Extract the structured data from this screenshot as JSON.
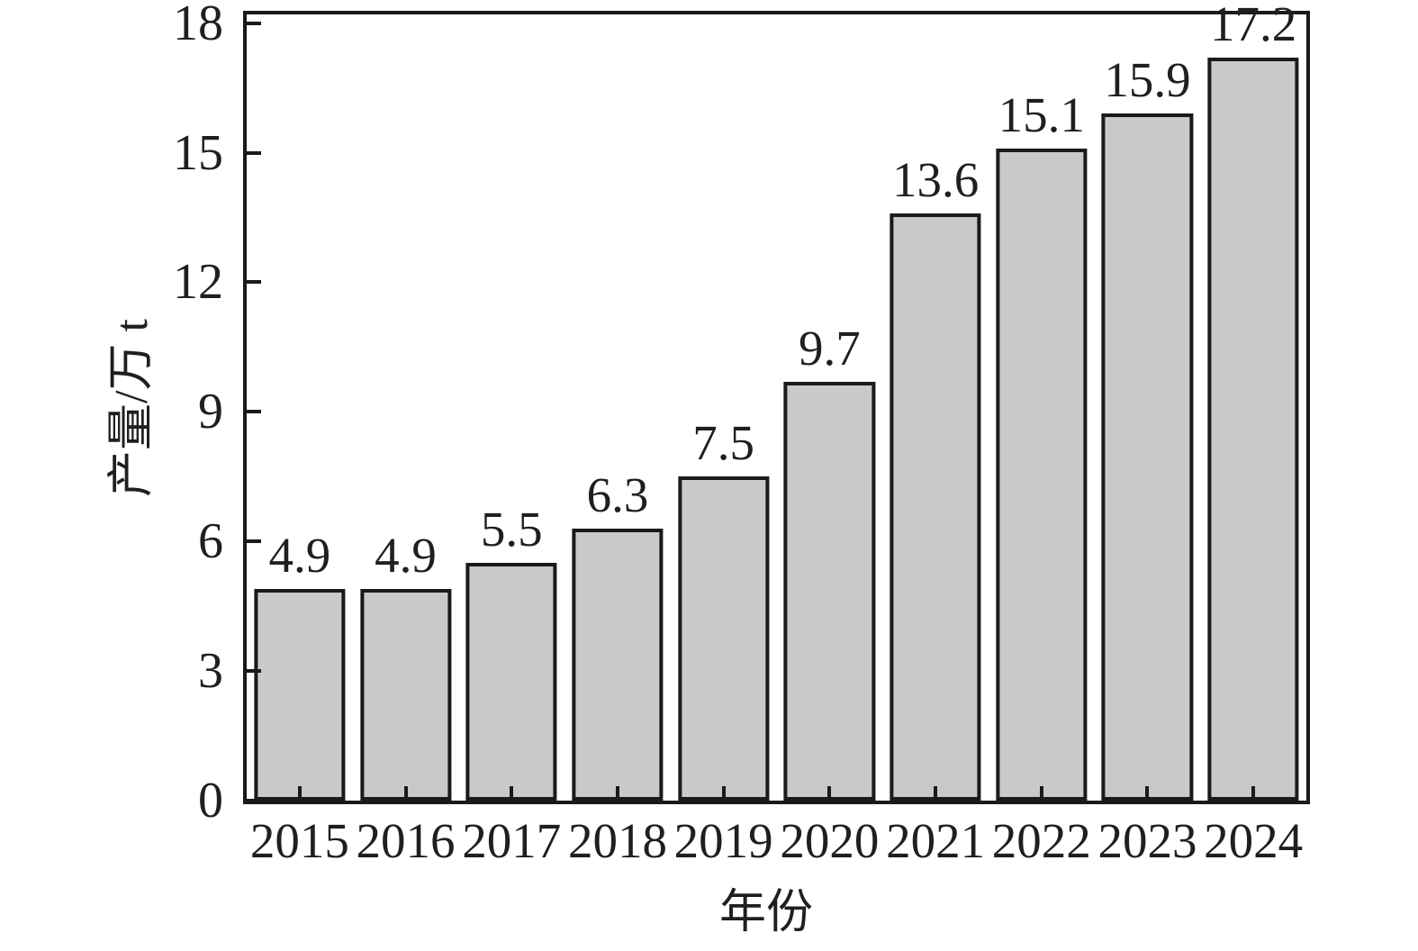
{
  "chart_data": {
    "type": "bar",
    "title": "",
    "xlabel": "年份",
    "ylabel": "产量/万 t",
    "categories": [
      "2015",
      "2016",
      "2017",
      "2018",
      "2019",
      "2020",
      "2021",
      "2022",
      "2023",
      "2024"
    ],
    "values": [
      4.9,
      4.9,
      5.5,
      6.3,
      7.5,
      9.7,
      13.6,
      15.1,
      15.9,
      17.2
    ],
    "value_labels": [
      "4.9",
      "4.9",
      "5.5",
      "6.3",
      "7.5",
      "9.7",
      "13.6",
      "15.1",
      "15.9",
      "17.2"
    ],
    "yticks": [
      0,
      3,
      6,
      9,
      12,
      15,
      18
    ],
    "ylim": [
      0,
      18.2
    ],
    "grid": false,
    "legend": null,
    "bar_fill": "#c9c9c9",
    "bar_border": "#1a1a1a",
    "axis_color": "#1a1a1a",
    "text_color": "#1f1f1f",
    "bar_width_fraction": 0.86
  }
}
